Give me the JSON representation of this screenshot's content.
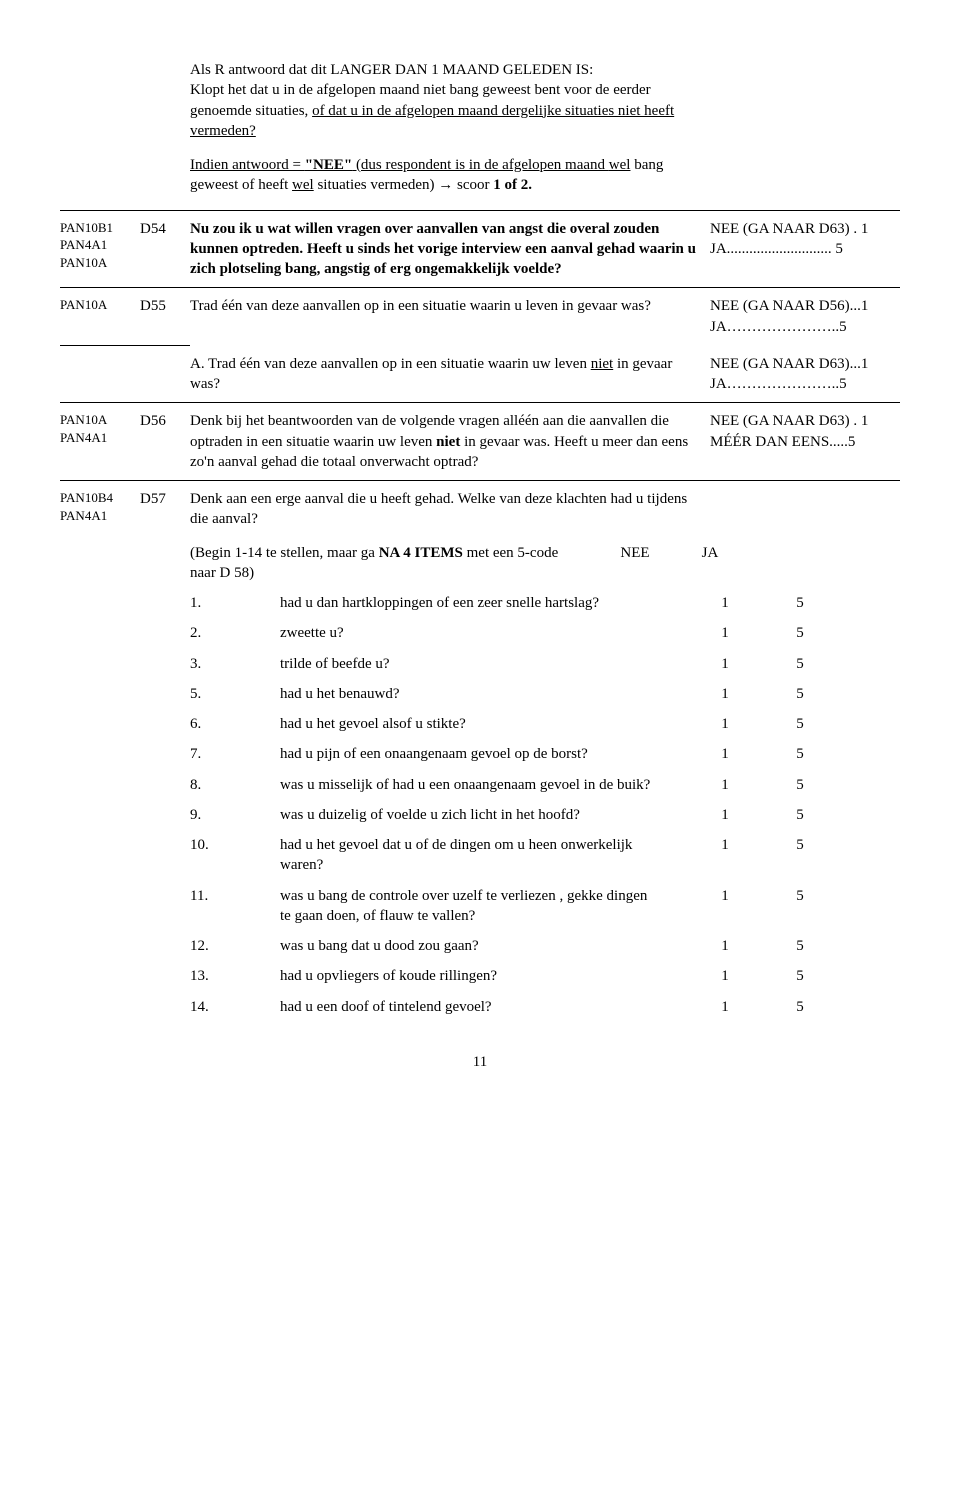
{
  "intro": {
    "p1a": "Als R antwoord dat dit LANGER DAN 1 MAAND GELEDEN IS:",
    "p1b": "Klopt het dat u in de afgelopen maand niet bang geweest bent voor de eerder genoemde situaties, ",
    "p1c": "of dat u in de afgelopen maand dergelijke situaties niet heeft vermeden?",
    "p2a": "Indien antwoord = ",
    "p2b": "\"NEE\"",
    "p2c": " (dus respondent is in de afgelopen maand ",
    "p2d": "wel",
    "p2e": " bang geweest of heeft ",
    "p2f": "wel",
    "p2g": " situaties vermeden) → scoor ",
    "p2h": "1 of 2."
  },
  "d54": {
    "codes": [
      "PAN10B1",
      "PAN4A1",
      "PAN10A"
    ],
    "id": "D54",
    "text": "Nu zou ik u wat willen vragen over aanvallen van angst die overal zouden kunnen optreden. Heeft u sinds het vorige interview een aanval gehad waarin u zich plotseling bang, angstig of erg ongemakkelijk voelde?",
    "ans": "NEE (GA NAAR D63) . 1\nJA............................ 5"
  },
  "d55": {
    "codes": [
      "PAN10A"
    ],
    "id": "D55",
    "text": "Trad één van deze aanvallen op in een situatie waarin u leven in gevaar was?",
    "ans": "NEE (GA NAAR D56)...1\nJA…………………..5"
  },
  "d55a": {
    "textA": "A. Trad één van deze aanvallen op in een situatie waarin uw leven ",
    "textB": "niet",
    "textC": " in gevaar was?",
    "ans": "NEE (GA NAAR D63)...1\nJA…………………..5"
  },
  "d56": {
    "codes": [
      "PAN10A",
      "PAN4A1"
    ],
    "id": "D56",
    "textA": "Denk bij het beantwoorden van de volgende vragen alléén aan die aanvallen die optraden in een situatie waarin uw leven ",
    "textB": "niet",
    "textC": " in gevaar was. Heeft u meer dan eens zo'n aanval gehad die totaal onverwacht optrad?",
    "ans": "NEE (GA NAAR D63) . 1\nMÉÉR DAN EENS.....5"
  },
  "d57": {
    "codes": [
      "PAN10B4",
      "PAN4A1"
    ],
    "id": "D57",
    "intro": "Denk aan een erge aanval die u heeft gehad. Welke van deze klachten had u tijdens die aanval?",
    "beginA": "(Begin 1-14 te stellen, maar ga ",
    "beginB": "NA 4 ITEMS",
    "beginC": " met een 5-code naar D 58)",
    "hdrNee": "NEE",
    "hdrJa": "JA",
    "items": [
      {
        "n": "1.",
        "t": "had u dan hartkloppingen of een zeer snelle hartslag?",
        "a": "1",
        "b": "5"
      },
      {
        "n": "2.",
        "t": "zweette u?",
        "a": "1",
        "b": "5"
      },
      {
        "n": "3.",
        "t": "trilde of beefde u?",
        "a": "1",
        "b": "5"
      },
      {
        "n": "5.",
        "t": "had u het benauwd?",
        "a": "1",
        "b": "5"
      },
      {
        "n": "6.",
        "t": "had u het gevoel alsof u stikte?",
        "a": "1",
        "b": "5"
      },
      {
        "n": "7.",
        "t": "had u pijn of een onaangenaam gevoel op de borst?",
        "a": "1",
        "b": "5"
      },
      {
        "n": "8.",
        "t": "was u misselijk of had u een onaangenaam gevoel in de buik?",
        "a": "1",
        "b": "5"
      },
      {
        "n": "9.",
        "t": "was u duizelig of voelde u zich licht in het hoofd?",
        "a": "1",
        "b": "5"
      },
      {
        "n": "10.",
        "t": "had u het gevoel dat u of de dingen om u heen onwerkelijk waren?",
        "a": "1",
        "b": "5"
      },
      {
        "n": "11.",
        "t": "was u bang de controle over uzelf te verliezen , gekke dingen te gaan doen, of flauw te vallen?",
        "a": "1",
        "b": "5"
      },
      {
        "n": "12.",
        "t": "was u bang dat u dood zou gaan?",
        "a": "1",
        "b": "5"
      },
      {
        "n": "13.",
        "t": "had u opvliegers of koude rillingen?",
        "a": "1",
        "b": "5"
      },
      {
        "n": "14.",
        "t": "had u een doof of tintelend gevoel?",
        "a": "1",
        "b": "5"
      }
    ]
  },
  "pagenum": "11"
}
